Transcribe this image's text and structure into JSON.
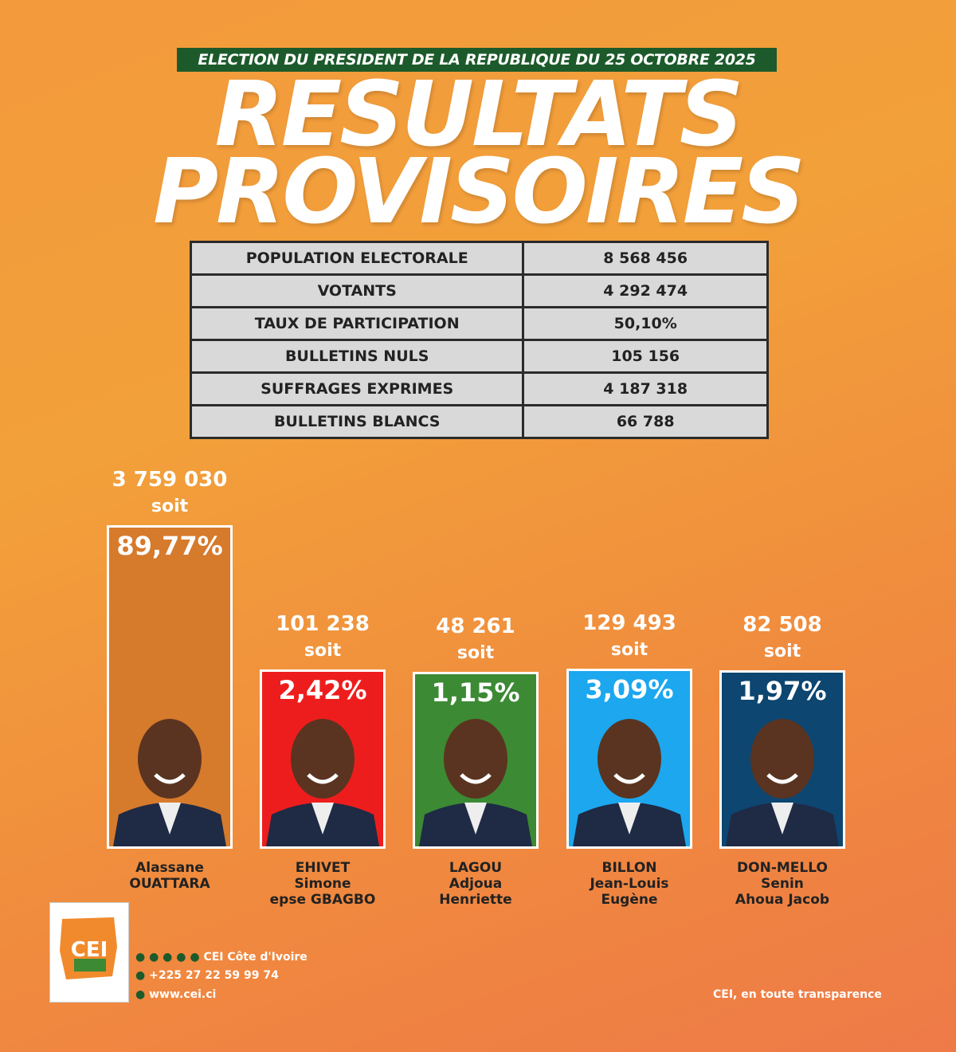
{
  "header": {
    "subtitle": "ELECTION DU PRESIDENT DE LA REPUBLIQUE DU 25 OCTOBRE 2025",
    "title_line1": "RESULTATS",
    "title_line2": "PROVISOIRES"
  },
  "table": {
    "rows": [
      [
        "POPULATION ELECTORALE",
        "8 568 456"
      ],
      [
        "VOTANTS",
        "4 292 474"
      ],
      [
        "TAUX DE PARTICIPATION",
        "50,10%"
      ],
      [
        "BULLETINS NULS",
        "105 156"
      ],
      [
        "SUFFRAGES EXPRIMES",
        "4 187 318"
      ],
      [
        "BULLETINS BLANCS",
        "66 788"
      ]
    ]
  },
  "chart_data": {
    "type": "bar",
    "categories": [
      "Alassane\nOUATTARA",
      "EHIVET\nSimone\nepse GBAGBO",
      "LAGOU\nAdjoua\nHenriette",
      "BILLON\nJean-Louis\nEugène",
      "DON-MELLO\nSenin\nAhoua Jacob"
    ],
    "values": [
      89.77,
      2.42,
      1.15,
      3.09,
      1.97
    ],
    "value_labels": [
      "89,77%",
      "2,42%",
      "1,15%",
      "3,09%",
      "1,97%"
    ],
    "votes": [
      "3 759 030",
      "101 238",
      "48 261",
      "129 493",
      "82 508"
    ],
    "connector": "soit",
    "colors": [
      "#d67a2c",
      "#ee1d1d",
      "#3c8a34",
      "#1ca7ef",
      "#0d4670"
    ]
  },
  "footer": {
    "logo": "CEI",
    "social": "CEI Côte d'Ivoire",
    "phone": "+225 27 22 59 99 74",
    "website": "www.cei.ci",
    "slogan": "CEI, en toute transparence"
  }
}
